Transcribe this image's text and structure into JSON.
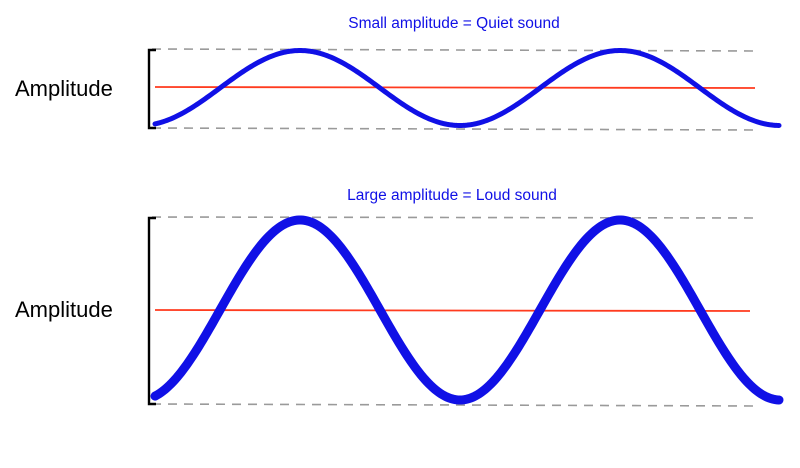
{
  "colors": {
    "wave": "#1010e6",
    "baseline": "#ff3b1f",
    "limit": "#9a9a9a",
    "bracket": "#000000",
    "title": "#1010e6",
    "label": "#000000"
  },
  "panels": [
    {
      "title": "Small amplitude = Quiet sound",
      "label": "Amplitude",
      "relative_amplitude": 0.42
    },
    {
      "title": "Large amplitude = Loud sound",
      "label": "Amplitude",
      "relative_amplitude": 1.0
    }
  ]
}
